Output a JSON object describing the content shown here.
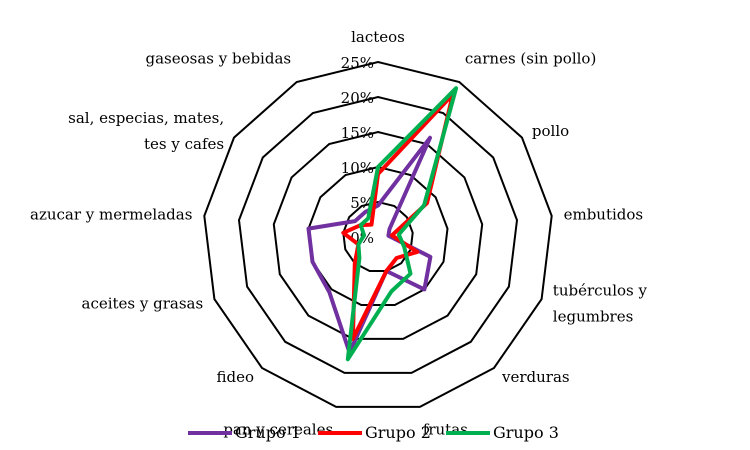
{
  "chart_data": {
    "type": "radar",
    "categories": [
      [
        "lacteos"
      ],
      [
        "carnes (sin pollo)"
      ],
      [
        "pollo"
      ],
      [
        "embutidos"
      ],
      [
        "tubérculos y",
        "legumbres"
      ],
      [
        "verduras"
      ],
      [
        "frutas"
      ],
      [
        "pan y cereales"
      ],
      [
        "fideo"
      ],
      [
        "aceites y grasas"
      ],
      [
        "azucar y mermeladas"
      ],
      [
        "sal, especias, mates,",
        "tes y cafes"
      ],
      [
        "gaseosas y bebidas"
      ]
    ],
    "ticks": [
      "0%",
      "5%",
      "10%",
      "15%",
      "20%",
      "25%"
    ],
    "tick_values": [
      0,
      5,
      10,
      15,
      20,
      25
    ],
    "rmax": 25,
    "series": [
      {
        "name": "Grupo 1",
        "color": "#7030a0",
        "values": [
          4.5,
          16,
          2,
          1.5,
          8,
          10,
          5,
          17,
          10.5,
          10,
          10,
          4,
          4
        ]
      },
      {
        "name": "Grupo 2",
        "color": "#ff0000",
        "values": [
          9,
          23,
          8.5,
          2,
          6,
          4,
          5,
          15,
          5,
          3,
          5,
          3,
          2
        ]
      },
      {
        "name": "Grupo 3",
        "color": "#00b050",
        "values": [
          10,
          24,
          8,
          3,
          4,
          7,
          8,
          18,
          4,
          3,
          2,
          3,
          3
        ]
      }
    ],
    "legend": "bottom"
  }
}
